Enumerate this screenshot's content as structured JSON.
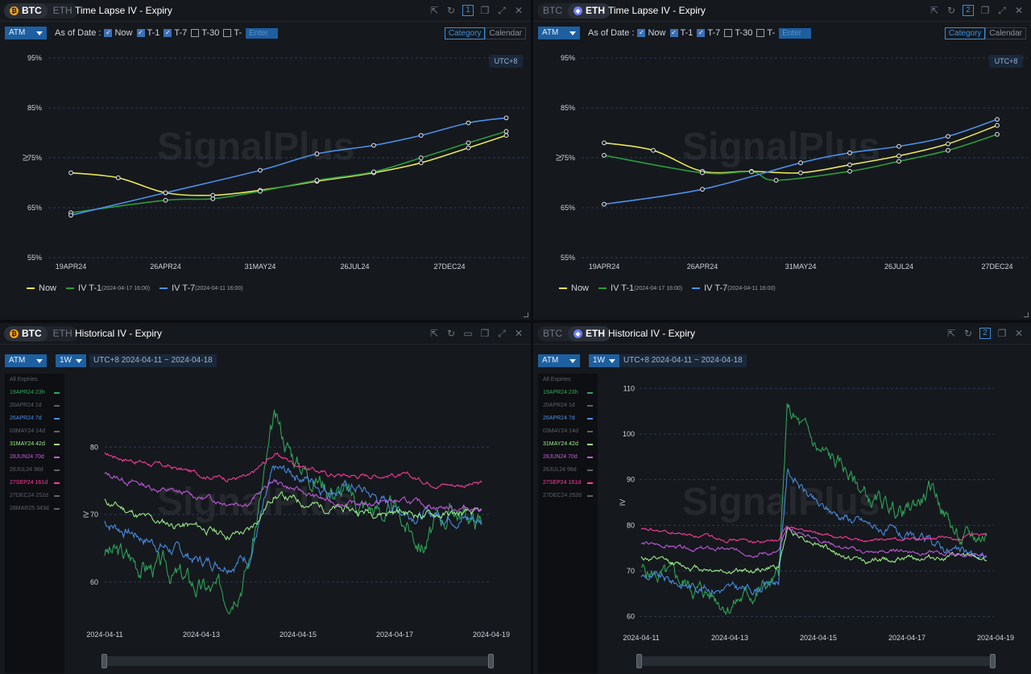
{
  "colors": {
    "now": "#e7e654",
    "t1": "#2b9b3c",
    "t7": "#4a8fe7"
  },
  "panels": [
    {
      "assets": [
        "BTC",
        "ETH"
      ],
      "active": "BTC",
      "title": "Time Lapse IV - Expiry",
      "badge": "1"
    },
    {
      "assets": [
        "BTC",
        "ETH"
      ],
      "active": "ETH",
      "title": "Time Lapse IV - Expiry",
      "badge": "2"
    },
    {
      "assets": [
        "BTC",
        "ETH"
      ],
      "active": "BTC",
      "title": "Historical IV - Expiry"
    },
    {
      "assets": [
        "BTC",
        "ETH"
      ],
      "active": "ETH",
      "title": "Historical IV - Expiry",
      "badge": "2"
    }
  ],
  "controls": {
    "moneyness": "ATM",
    "as_of": "As of Date :",
    "now": "Now",
    "t1": "T-1",
    "t7": "T-7",
    "t30": "T-30",
    "tx": "T-",
    "enter": "Enter",
    "category": "Category",
    "calendar": "Calendar",
    "utc": "UTC+8",
    "window": "1W",
    "range": "UTC+8 2024-04-11 ~ 2024-04-18"
  },
  "legend": {
    "now": "Now",
    "t1": "IV T-1",
    "t1_time": "(2024-04-17 16:00)",
    "t7": "IV T-7",
    "t7_time": "(2024-04-11 16:00)"
  },
  "watermark": "SignalPlus",
  "expiries_btc": [
    {
      "label": "19APR24 23h",
      "color": "#2fa85a"
    },
    {
      "label": "20APR24 1d",
      "color": "#5c626c"
    },
    {
      "label": "26APR24 7d",
      "color": "#4a8fe7"
    },
    {
      "label": "03MAY24 14d",
      "color": "#5c626c"
    },
    {
      "label": "31MAY24 42d",
      "color": "#9ef08c"
    },
    {
      "label": "28JUN24 70d",
      "color": "#c35be0"
    },
    {
      "label": "26JUL24 98d",
      "color": "#5c626c"
    },
    {
      "label": "27SEP24 161d",
      "color": "#ff3c9a"
    },
    {
      "label": "27DEC24 252d",
      "color": "#5c626c"
    },
    {
      "label": "28MAR25 343d",
      "color": "#5c626c"
    }
  ],
  "expiries_eth": [
    {
      "label": "19APR24 23h",
      "color": "#2fa85a"
    },
    {
      "label": "20APR24 1d",
      "color": "#5c626c"
    },
    {
      "label": "26APR24 7d",
      "color": "#4a8fe7"
    },
    {
      "label": "03MAY24 14d",
      "color": "#5c626c"
    },
    {
      "label": "31MAY24 42d",
      "color": "#9ef08c"
    },
    {
      "label": "28JUN24 70d",
      "color": "#c35be0"
    },
    {
      "label": "26JUL24 98d",
      "color": "#5c626c"
    },
    {
      "label": "27SEP24 161d",
      "color": "#ff3c9a"
    },
    {
      "label": "27DEC24 252d",
      "color": "#5c626c"
    }
  ],
  "all_expiries": "All Expiries",
  "chart_data": [
    {
      "type": "line",
      "title": "Time Lapse IV - Expiry",
      "asset": "BTC",
      "ylabel": "IV",
      "ylim": [
        55,
        95
      ],
      "yticks": [
        "95%",
        "85%",
        "75%",
        "65%",
        "55%"
      ],
      "x": [
        "19APR24",
        "26APR24",
        "31MAY24",
        "26JUL24",
        "27DEC24"
      ],
      "series": [
        {
          "name": "Now",
          "color": "#e7e654",
          "points": [
            [
              0,
              72
            ],
            [
              0.5,
              71
            ],
            [
              1,
              68
            ],
            [
              1.5,
              67.5
            ],
            [
              2,
              68.5
            ],
            [
              2.6,
              70.3
            ],
            [
              3.2,
              72
            ],
            [
              3.7,
              74
            ],
            [
              4.2,
              77
            ],
            [
              4.6,
              79.5
            ]
          ]
        },
        {
          "name": "IV T-1",
          "color": "#2b9b3c",
          "points": [
            [
              0,
              64
            ],
            [
              1,
              66.5
            ],
            [
              1.5,
              66.8
            ],
            [
              2,
              68.3
            ],
            [
              2.6,
              70.5
            ],
            [
              3.2,
              72.2
            ],
            [
              3.7,
              75
            ],
            [
              4.2,
              78
            ],
            [
              4.6,
              80.3
            ]
          ]
        },
        {
          "name": "IV T-7",
          "color": "#4a8fe7",
          "points": [
            [
              0,
              63.5
            ],
            [
              1,
              68
            ],
            [
              2,
              72.5
            ],
            [
              2.6,
              75.8
            ],
            [
              3.2,
              77.5
            ],
            [
              3.7,
              79.5
            ],
            [
              4.2,
              82
            ],
            [
              4.6,
              83
            ]
          ]
        }
      ]
    },
    {
      "type": "line",
      "title": "Time Lapse IV - Expiry",
      "asset": "ETH",
      "ylabel": "IV",
      "ylim": [
        55,
        95
      ],
      "yticks": [
        "95%",
        "85%",
        "75%",
        "65%",
        "55%"
      ],
      "x": [
        "19APR24",
        "26APR24",
        "31MAY24",
        "26JUL24",
        "27DEC24"
      ],
      "series": [
        {
          "name": "Now",
          "color": "#e7e654",
          "points": [
            [
              0,
              78
            ],
            [
              0.5,
              76.5
            ],
            [
              1,
              72.3
            ],
            [
              1.5,
              72.3
            ],
            [
              2,
              72
            ],
            [
              2.5,
              73.6
            ],
            [
              3,
              75.4
            ],
            [
              3.5,
              77.8
            ],
            [
              4,
              81.5
            ]
          ]
        },
        {
          "name": "IV T-1",
          "color": "#2b9b3c",
          "points": [
            [
              0,
              75.5
            ],
            [
              1,
              72
            ],
            [
              1.5,
              72.2
            ],
            [
              1.75,
              70.5
            ],
            [
              2.5,
              72.3
            ],
            [
              3,
              74.3
            ],
            [
              3.5,
              76.5
            ],
            [
              4,
              79.7
            ]
          ]
        },
        {
          "name": "IV T-7",
          "color": "#4a8fe7",
          "points": [
            [
              0,
              65.7
            ],
            [
              1,
              68.7
            ],
            [
              2,
              74
            ],
            [
              2.5,
              76
            ],
            [
              3,
              77.3
            ],
            [
              3.5,
              79.3
            ],
            [
              4,
              82.7
            ]
          ]
        }
      ]
    },
    {
      "type": "line",
      "title": "Historical IV - Expiry",
      "asset": "BTC",
      "ylabel": "IV",
      "ylim": [
        54,
        86
      ],
      "yticks": [
        "80",
        "70",
        "60"
      ],
      "x": [
        "2024-04-11",
        "2024-04-13",
        "2024-04-15",
        "2024-04-17",
        "2024-04-19"
      ],
      "series": [
        {
          "name": "19APR24 23h",
          "color": "#2fa85a",
          "seed": 3,
          "noise": 2.2,
          "points": [
            [
              0,
              64.5
            ],
            [
              0.6,
              62
            ],
            [
              1,
              59
            ],
            [
              1.25,
              58
            ],
            [
              1.5,
              64
            ],
            [
              1.75,
              83
            ],
            [
              2,
              78
            ],
            [
              2.3,
              75
            ],
            [
              2.6,
              72
            ],
            [
              3,
              70
            ],
            [
              3.3,
              66
            ],
            [
              3.6,
              71
            ],
            [
              3.9,
              69
            ]
          ]
        },
        {
          "name": "26APR24 7d",
          "color": "#4a8fe7",
          "seed": 7,
          "noise": 1.2,
          "points": [
            [
              0,
              69
            ],
            [
              0.5,
              66
            ],
            [
              1,
              63
            ],
            [
              1.25,
              63
            ],
            [
              1.5,
              64
            ],
            [
              1.75,
              76
            ],
            [
              2,
              76
            ],
            [
              2.3,
              74
            ],
            [
              2.6,
              74
            ],
            [
              3,
              71
            ],
            [
              3.3,
              70
            ],
            [
              3.6,
              70
            ],
            [
              3.9,
              69
            ]
          ]
        },
        {
          "name": "31MAY24 42d",
          "color": "#9ef08c",
          "seed": 11,
          "noise": 0.8,
          "points": [
            [
              0,
              72
            ],
            [
              0.5,
              69
            ],
            [
              1,
              68
            ],
            [
              1.25,
              67
            ],
            [
              1.5,
              67.5
            ],
            [
              1.75,
              73
            ],
            [
              2,
              72
            ],
            [
              2.3,
              71
            ],
            [
              2.6,
              70.5
            ],
            [
              3,
              70.5
            ],
            [
              3.3,
              70
            ],
            [
              3.6,
              70
            ],
            [
              3.9,
              70
            ]
          ]
        },
        {
          "name": "28JUN24 70d",
          "color": "#c35be0",
          "seed": 13,
          "noise": 0.6,
          "points": [
            [
              0,
              76
            ],
            [
              0.5,
              74
            ],
            [
              1,
              72.5
            ],
            [
              1.25,
              72
            ],
            [
              1.5,
              72
            ],
            [
              1.75,
              75
            ],
            [
              2,
              73.5
            ],
            [
              2.3,
              72
            ],
            [
              2.6,
              71.5
            ],
            [
              3,
              72
            ],
            [
              3.3,
              71.5
            ],
            [
              3.6,
              71
            ],
            [
              3.9,
              71
            ]
          ]
        },
        {
          "name": "27SEP24 161d",
          "color": "#ff3c9a",
          "seed": 17,
          "noise": 0.5,
          "points": [
            [
              0,
              79
            ],
            [
              0.5,
              77.5
            ],
            [
              1,
              76
            ],
            [
              1.25,
              75.5
            ],
            [
              1.5,
              75.5
            ],
            [
              1.75,
              79
            ],
            [
              2,
              77.5
            ],
            [
              2.3,
              76
            ],
            [
              2.6,
              75.8
            ],
            [
              3,
              76
            ],
            [
              3.3,
              75
            ],
            [
              3.6,
              74.5
            ],
            [
              3.9,
              74.5
            ]
          ]
        }
      ]
    },
    {
      "type": "line",
      "title": "Historical IV - Expiry",
      "asset": "ETH",
      "ylabel": "IV",
      "ylim": [
        58,
        112
      ],
      "yticks": [
        "110",
        "100",
        "90",
        "80",
        "70",
        "60"
      ],
      "x": [
        "2024-04-11",
        "2024-04-13",
        "2024-04-15",
        "2024-04-17",
        "2024-04-19"
      ],
      "series": [
        {
          "name": "19APR24 23h",
          "color": "#2fa85a",
          "seed": 5,
          "noise": 2.5,
          "points": [
            [
              0,
              70
            ],
            [
              0.5,
              67
            ],
            [
              1,
              63
            ],
            [
              1.25,
              65
            ],
            [
              1.55,
              68
            ],
            [
              1.65,
              105
            ],
            [
              2,
              96
            ],
            [
              2.3,
              92
            ],
            [
              2.6,
              85
            ],
            [
              3,
              83
            ],
            [
              3.3,
              88
            ],
            [
              3.6,
              76
            ],
            [
              3.9,
              78
            ]
          ]
        },
        {
          "name": "26APR24 7d",
          "color": "#4a8fe7",
          "seed": 9,
          "noise": 1.3,
          "points": [
            [
              0,
              69
            ],
            [
              0.5,
              67
            ],
            [
              1,
              66
            ],
            [
              1.25,
              66
            ],
            [
              1.55,
              68
            ],
            [
              1.65,
              92
            ],
            [
              2,
              84
            ],
            [
              2.3,
              82
            ],
            [
              2.6,
              80
            ],
            [
              3,
              77
            ],
            [
              3.3,
              76
            ],
            [
              3.6,
              74
            ],
            [
              3.9,
              73
            ]
          ]
        },
        {
          "name": "31MAY24 42d",
          "color": "#9ef08c",
          "seed": 12,
          "noise": 0.8,
          "points": [
            [
              0,
              73
            ],
            [
              0.5,
              71
            ],
            [
              1,
              70
            ],
            [
              1.25,
              70
            ],
            [
              1.55,
              71
            ],
            [
              1.65,
              79
            ],
            [
              2,
              76
            ],
            [
              2.3,
              73
            ],
            [
              2.6,
              72
            ],
            [
              3,
              73
            ],
            [
              3.3,
              73
            ],
            [
              3.6,
              73
            ],
            [
              3.9,
              72.5
            ]
          ]
        },
        {
          "name": "28JUN24 70d",
          "color": "#c35be0",
          "seed": 14,
          "noise": 0.6,
          "points": [
            [
              0,
              76
            ],
            [
              0.5,
              75
            ],
            [
              1,
              74.5
            ],
            [
              1.25,
              74
            ],
            [
              1.55,
              74
            ],
            [
              1.65,
              79
            ],
            [
              2,
              77
            ],
            [
              2.3,
              75
            ],
            [
              2.6,
              74
            ],
            [
              3,
              74.5
            ],
            [
              3.3,
              74
            ],
            [
              3.6,
              73.5
            ],
            [
              3.9,
              73.5
            ]
          ]
        },
        {
          "name": "27SEP24 161d",
          "color": "#ff3c9a",
          "seed": 18,
          "noise": 0.5,
          "points": [
            [
              0,
              79
            ],
            [
              0.5,
              78
            ],
            [
              1,
              77
            ],
            [
              1.25,
              76.5
            ],
            [
              1.55,
              76.5
            ],
            [
              1.65,
              80
            ],
            [
              2,
              78
            ],
            [
              2.3,
              77
            ],
            [
              2.6,
              76.5
            ],
            [
              3,
              77
            ],
            [
              3.3,
              77
            ],
            [
              3.6,
              77
            ],
            [
              3.9,
              78
            ]
          ]
        }
      ]
    }
  ]
}
